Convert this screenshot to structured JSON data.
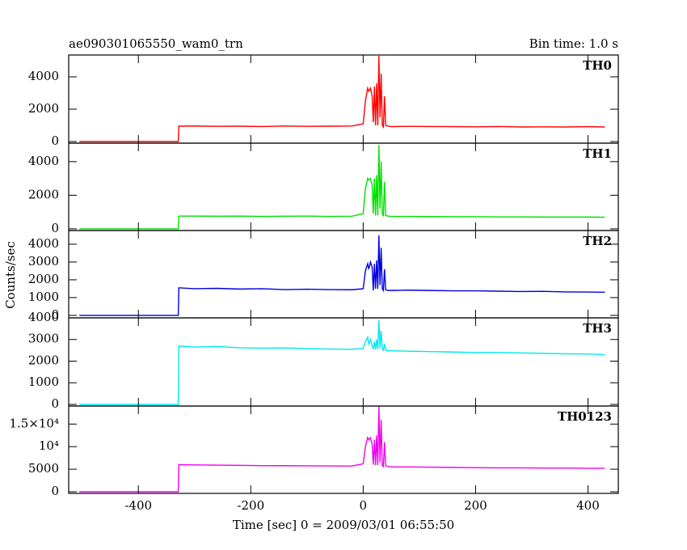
{
  "header": {
    "title": "ae090301065550_wam0_trn",
    "bin_time": "Bin time: 1.0 s"
  },
  "y_label": "Counts/sec",
  "x_label": "Time [sec] 0 = 2009/03/01 06:55:50",
  "chart_data": [
    {
      "type": "line",
      "xlim": [
        -524,
        454
      ],
      "ylim": [
        -100,
        5350
      ],
      "xticks": [
        -400,
        -200,
        0,
        200,
        400
      ],
      "yticks": [
        0,
        2000,
        4000
      ],
      "x": [
        -505,
        -329,
        -328,
        -300,
        -260,
        -220,
        -180,
        -140,
        -100,
        -60,
        -20,
        0,
        4,
        8,
        10,
        13,
        16,
        18,
        20,
        22,
        24,
        26,
        28,
        30,
        32,
        34,
        36,
        38,
        40,
        44,
        50,
        80,
        120,
        160,
        200,
        240,
        280,
        320,
        360,
        400,
        430
      ],
      "series": [
        {
          "name": "TH0",
          "color": "#ff0000",
          "values": [
            0,
            0,
            950,
            960,
            940,
            950,
            930,
            960,
            940,
            950,
            960,
            1100,
            2500,
            3300,
            3100,
            3300,
            2800,
            1200,
            3400,
            1000,
            3600,
            1000,
            5300,
            1500,
            4200,
            1000,
            900,
            2800,
            1000,
            950,
            920,
            940,
            930,
            920,
            910,
            930,
            900,
            910,
            900,
            920,
            900
          ]
        }
      ]
    },
    {
      "type": "line",
      "xlim": [
        -524,
        454
      ],
      "ylim": [
        -100,
        5100
      ],
      "xticks": [
        -400,
        -200,
        0,
        200,
        400
      ],
      "yticks": [
        0,
        2000,
        4000
      ],
      "x": [
        -505,
        -329,
        -328,
        -300,
        -260,
        -220,
        -180,
        -140,
        -100,
        -60,
        -20,
        0,
        4,
        8,
        10,
        13,
        16,
        18,
        20,
        22,
        24,
        26,
        28,
        30,
        32,
        34,
        36,
        38,
        40,
        44,
        50,
        80,
        120,
        160,
        200,
        240,
        280,
        320,
        360,
        400,
        430
      ],
      "series": [
        {
          "name": "TH1",
          "color": "#00e000",
          "values": [
            0,
            0,
            760,
            760,
            750,
            760,
            740,
            750,
            760,
            740,
            750,
            900,
            2400,
            3000,
            2900,
            3000,
            2600,
            900,
            3000,
            800,
            3200,
            800,
            5000,
            1200,
            4000,
            900,
            750,
            2800,
            800,
            760,
            740,
            740,
            730,
            720,
            720,
            710,
            710,
            700,
            700,
            700,
            690
          ]
        }
      ]
    },
    {
      "type": "line",
      "xlim": [
        -524,
        454
      ],
      "ylim": [
        -140,
        4770
      ],
      "xticks": [
        -400,
        -200,
        0,
        200,
        400
      ],
      "yticks": [
        0,
        1000,
        2000,
        3000,
        4000
      ],
      "x": [
        -505,
        -329,
        -328,
        -300,
        -260,
        -220,
        -180,
        -140,
        -100,
        -60,
        -20,
        0,
        4,
        8,
        10,
        13,
        16,
        18,
        20,
        22,
        24,
        26,
        28,
        30,
        32,
        34,
        36,
        38,
        40,
        44,
        50,
        80,
        120,
        160,
        200,
        240,
        280,
        320,
        360,
        400,
        430
      ],
      "series": [
        {
          "name": "TH2",
          "color": "#0000e0",
          "values": [
            0,
            0,
            1550,
            1500,
            1520,
            1480,
            1500,
            1450,
            1470,
            1450,
            1440,
            1500,
            2500,
            2900,
            2600,
            3000,
            2700,
            1400,
            2900,
            1500,
            3100,
            1500,
            4500,
            1700,
            3800,
            1500,
            1400,
            2600,
            1450,
            1400,
            1400,
            1420,
            1400,
            1380,
            1380,
            1360,
            1340,
            1350,
            1320,
            1310,
            1300
          ]
        }
      ]
    },
    {
      "type": "line",
      "xlim": [
        -524,
        454
      ],
      "ylim": [
        -75,
        4000
      ],
      "xticks": [
        -400,
        -200,
        0,
        200,
        400
      ],
      "yticks": [
        0,
        1000,
        2000,
        3000,
        4000
      ],
      "x": [
        -505,
        -329,
        -328,
        -300,
        -260,
        -220,
        -180,
        -140,
        -100,
        -60,
        -20,
        0,
        4,
        8,
        10,
        13,
        16,
        18,
        20,
        22,
        24,
        26,
        28,
        30,
        32,
        34,
        36,
        38,
        40,
        44,
        50,
        80,
        120,
        160,
        200,
        240,
        280,
        320,
        360,
        400,
        430
      ],
      "series": [
        {
          "name": "TH3",
          "color": "#00e8f0",
          "values": [
            0,
            0,
            2700,
            2650,
            2680,
            2620,
            2600,
            2610,
            2580,
            2560,
            2550,
            2600,
            2900,
            3100,
            2800,
            3000,
            2700,
            2550,
            2900,
            2550,
            3000,
            2550,
            3900,
            2600,
            3400,
            2550,
            2500,
            2800,
            2500,
            2480,
            2480,
            2460,
            2440,
            2420,
            2400,
            2400,
            2380,
            2360,
            2340,
            2330,
            2300
          ]
        }
      ]
    },
    {
      "type": "line",
      "xlim": [
        -524,
        454
      ],
      "ylim": [
        -360,
        19000
      ],
      "xticks": [
        -400,
        -200,
        0,
        200,
        400
      ],
      "yticks": [
        0,
        5000,
        {
          "value": 10000,
          "label": "10⁴"
        },
        {
          "value": 15000,
          "label": "1.5×10⁴"
        }
      ],
      "x": [
        -505,
        -329,
        -328,
        -300,
        -260,
        -220,
        -180,
        -140,
        -100,
        -60,
        -20,
        0,
        4,
        8,
        10,
        13,
        16,
        18,
        20,
        22,
        24,
        26,
        28,
        30,
        32,
        34,
        36,
        38,
        40,
        44,
        50,
        80,
        120,
        160,
        200,
        240,
        280,
        320,
        360,
        400,
        430
      ],
      "series": [
        {
          "name": "TH0123",
          "color": "#f000f0",
          "values": [
            0,
            0,
            6000,
            5950,
            5900,
            5850,
            5800,
            5780,
            5750,
            5720,
            5700,
            6200,
            10000,
            12000,
            11500,
            12000,
            10500,
            6000,
            11500,
            5900,
            12500,
            5900,
            19000,
            6500,
            16000,
            5900,
            5600,
            11000,
            5800,
            5600,
            5500,
            5500,
            5450,
            5400,
            5350,
            5300,
            5300,
            5250,
            5250,
            5200,
            5200
          ]
        }
      ]
    }
  ]
}
